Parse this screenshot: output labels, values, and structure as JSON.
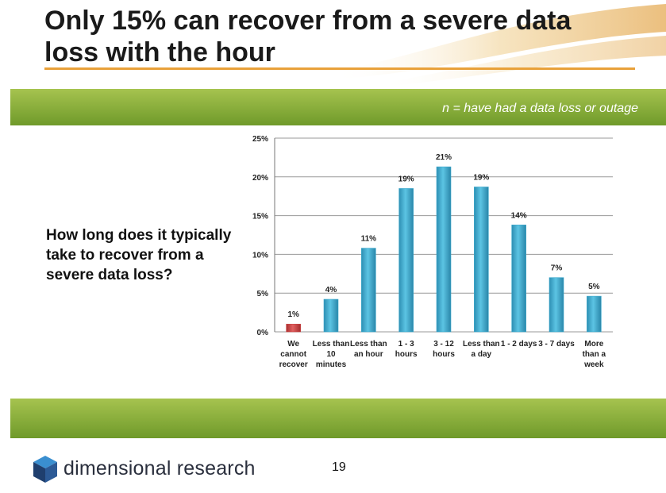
{
  "slide": {
    "title": "Only 15% can recover from a severe data loss with the hour",
    "note": "n = have had a data loss or outage",
    "question": "How long does it typically take to recover from a severe data loss?",
    "logo_text": "dimensional research",
    "page_number": "19"
  },
  "colors": {
    "accent_green": "#8db23c",
    "bar_blue": "#3aa8cc",
    "bar_red": "#c94040",
    "title_rule": "#e8a13a"
  },
  "chart_data": {
    "type": "bar",
    "title": "",
    "xlabel": "",
    "ylabel": "",
    "ylim": [
      0,
      25
    ],
    "yticks": [
      0,
      5,
      10,
      15,
      20,
      25
    ],
    "yticklabels": [
      "0%",
      "5%",
      "10%",
      "15%",
      "20%",
      "25%"
    ],
    "grid": true,
    "categories": [
      [
        "We",
        "cannot",
        "recover"
      ],
      [
        "Less than",
        "10",
        "minutes"
      ],
      [
        "Less than",
        "an hour"
      ],
      [
        "1 - 3",
        "hours"
      ],
      [
        "3 - 12",
        "hours"
      ],
      [
        "Less than",
        "a day"
      ],
      [
        "1 - 2 days"
      ],
      [
        "3 - 7 days"
      ],
      [
        "More",
        "than a",
        "week"
      ]
    ],
    "values": [
      1,
      4.2,
      10.8,
      18.5,
      21.3,
      18.7,
      13.8,
      7,
      4.6
    ],
    "data_labels": [
      "1%",
      "4%",
      "11%",
      "19%",
      "21%",
      "19%",
      "14%",
      "7%",
      "5%"
    ],
    "bar_colors": [
      "#c94040",
      "#3aa8cc",
      "#3aa8cc",
      "#3aa8cc",
      "#3aa8cc",
      "#3aa8cc",
      "#3aa8cc",
      "#3aa8cc",
      "#3aa8cc"
    ]
  }
}
